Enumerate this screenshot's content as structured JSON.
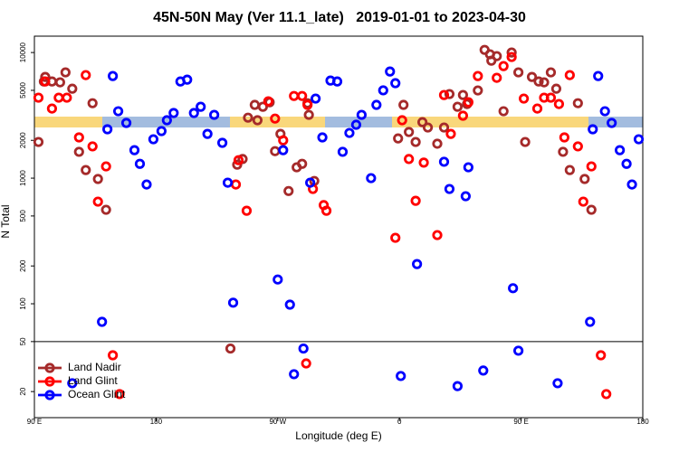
{
  "chart_data": {
    "type": "scatter",
    "title": "45N-50N May (Ver 11.1_late)   2019-01-01 to 2023-04-30",
    "x_label": "Longitude (deg E)",
    "y_label": "N Total",
    "xlim": [
      90,
      540
    ],
    "xticks": [
      {
        "value": 90,
        "label": "90 E"
      },
      {
        "value": 180,
        "label": "180"
      },
      {
        "value": 270,
        "label": "90 W"
      },
      {
        "value": 360,
        "label": "0"
      },
      {
        "value": 450,
        "label": "90 E"
      },
      {
        "value": 540,
        "label": "180"
      }
    ],
    "ylim": [
      12.4,
      13500
    ],
    "ylog": true,
    "yticks": [
      20,
      50,
      100,
      200,
      500,
      1000,
      2000,
      5000,
      10000
    ],
    "hline": 50,
    "legend": "bottom-left",
    "series": [
      {
        "name": "Land Nadir",
        "color": "#a52a2a",
        "x": [
          93,
          98,
          97,
          103,
          109,
          113,
          118,
          123,
          128,
          133,
          137,
          143,
          235,
          240,
          244,
          248,
          253,
          255,
          259,
          264,
          268,
          272,
          278,
          284,
          288,
          292,
          293,
          297,
          359,
          363,
          367,
          372,
          377,
          381,
          388,
          393,
          397,
          403,
          407,
          410,
          418,
          423,
          427,
          428,
          432,
          437,
          443,
          448,
          453,
          458,
          463,
          467,
          472,
          476,
          481,
          486,
          492,
          497,
          502
        ],
        "values": [
          1940,
          6390,
          5880,
          5880,
          5790,
          6950,
          5150,
          1620,
          1160,
          3950,
          985,
          560,
          44,
          1280,
          1420,
          3030,
          3830,
          2890,
          3700,
          4020,
          1640,
          2250,
          790,
          1220,
          1300,
          3950,
          3190,
          950,
          2070,
          3830,
          2330,
          1940,
          2790,
          2530,
          1880,
          2530,
          4670,
          3700,
          4590,
          3890,
          4990,
          10500,
          9680,
          8610,
          9360,
          3410,
          10000,
          6950,
          1940,
          6390,
          5880,
          5790,
          6950,
          5150,
          1620,
          1160,
          3950,
          985,
          560
        ]
      },
      {
        "name": "Land Glint",
        "color": "#ff0000",
        "x": [
          93,
          98,
          103,
          108,
          114,
          123,
          128,
          133,
          137,
          143,
          148,
          153,
          239,
          241,
          247,
          263,
          268,
          274,
          282,
          288,
          292,
          296,
          304,
          306,
          291,
          357,
          362,
          367,
          372,
          378,
          388,
          393,
          398,
          407,
          411,
          418,
          432,
          437,
          443,
          452,
          462,
          467,
          472,
          478,
          482,
          486,
          492,
          496,
          502,
          509,
          513
        ],
        "values": [
          4370,
          5880,
          3580,
          4370,
          4370,
          2110,
          6610,
          1790,
          650,
          1240,
          38.9,
          19.1,
          890,
          1390,
          550,
          4090,
          2980,
          2000,
          4510,
          4510,
          3830,
          820,
          610,
          550,
          33.5,
          335,
          2890,
          1420,
          660,
          1330,
          352,
          4590,
          2250,
          3140,
          4020,
          6500,
          6290,
          7800,
          9210,
          4300,
          3580,
          4370,
          4370,
          3890,
          2110,
          6610,
          1790,
          650,
          1240,
          38.9,
          19.1
        ]
      },
      {
        "name": "Ocean Glint",
        "color": "#0000ff",
        "x": [
          118,
          140,
          144,
          148,
          152,
          158,
          164,
          168,
          173,
          178,
          184,
          188,
          193,
          198,
          203,
          208,
          213,
          218,
          223,
          229,
          233,
          237,
          270,
          274,
          279,
          282,
          289,
          294,
          298,
          303,
          309,
          314,
          318,
          323,
          328,
          332,
          339,
          343,
          348,
          353,
          357,
          361,
          373,
          393,
          397,
          403,
          409,
          411,
          422,
          444,
          448,
          477,
          501,
          503,
          507,
          512,
          517,
          523,
          528,
          532,
          537
        ],
        "values": [
          23.3,
          71.8,
          2450,
          6500,
          3410,
          2750,
          1670,
          1300,
          890,
          2040,
          2370,
          2890,
          3300,
          5880,
          6080,
          3300,
          3700,
          2250,
          3190,
          1910,
          920,
          102,
          156,
          1670,
          98.4,
          27.5,
          44,
          920,
          4300,
          2110,
          5980,
          5880,
          1620,
          2290,
          2660,
          3190,
          1000,
          3830,
          5000,
          7060,
          5700,
          26.6,
          207,
          1350,
          820,
          22.1,
          718,
          1220,
          29.4,
          133,
          42.3,
          23.3,
          71.8,
          2450,
          6500,
          3410,
          2750,
          1670,
          1300,
          890,
          2040
        ]
      }
    ]
  }
}
